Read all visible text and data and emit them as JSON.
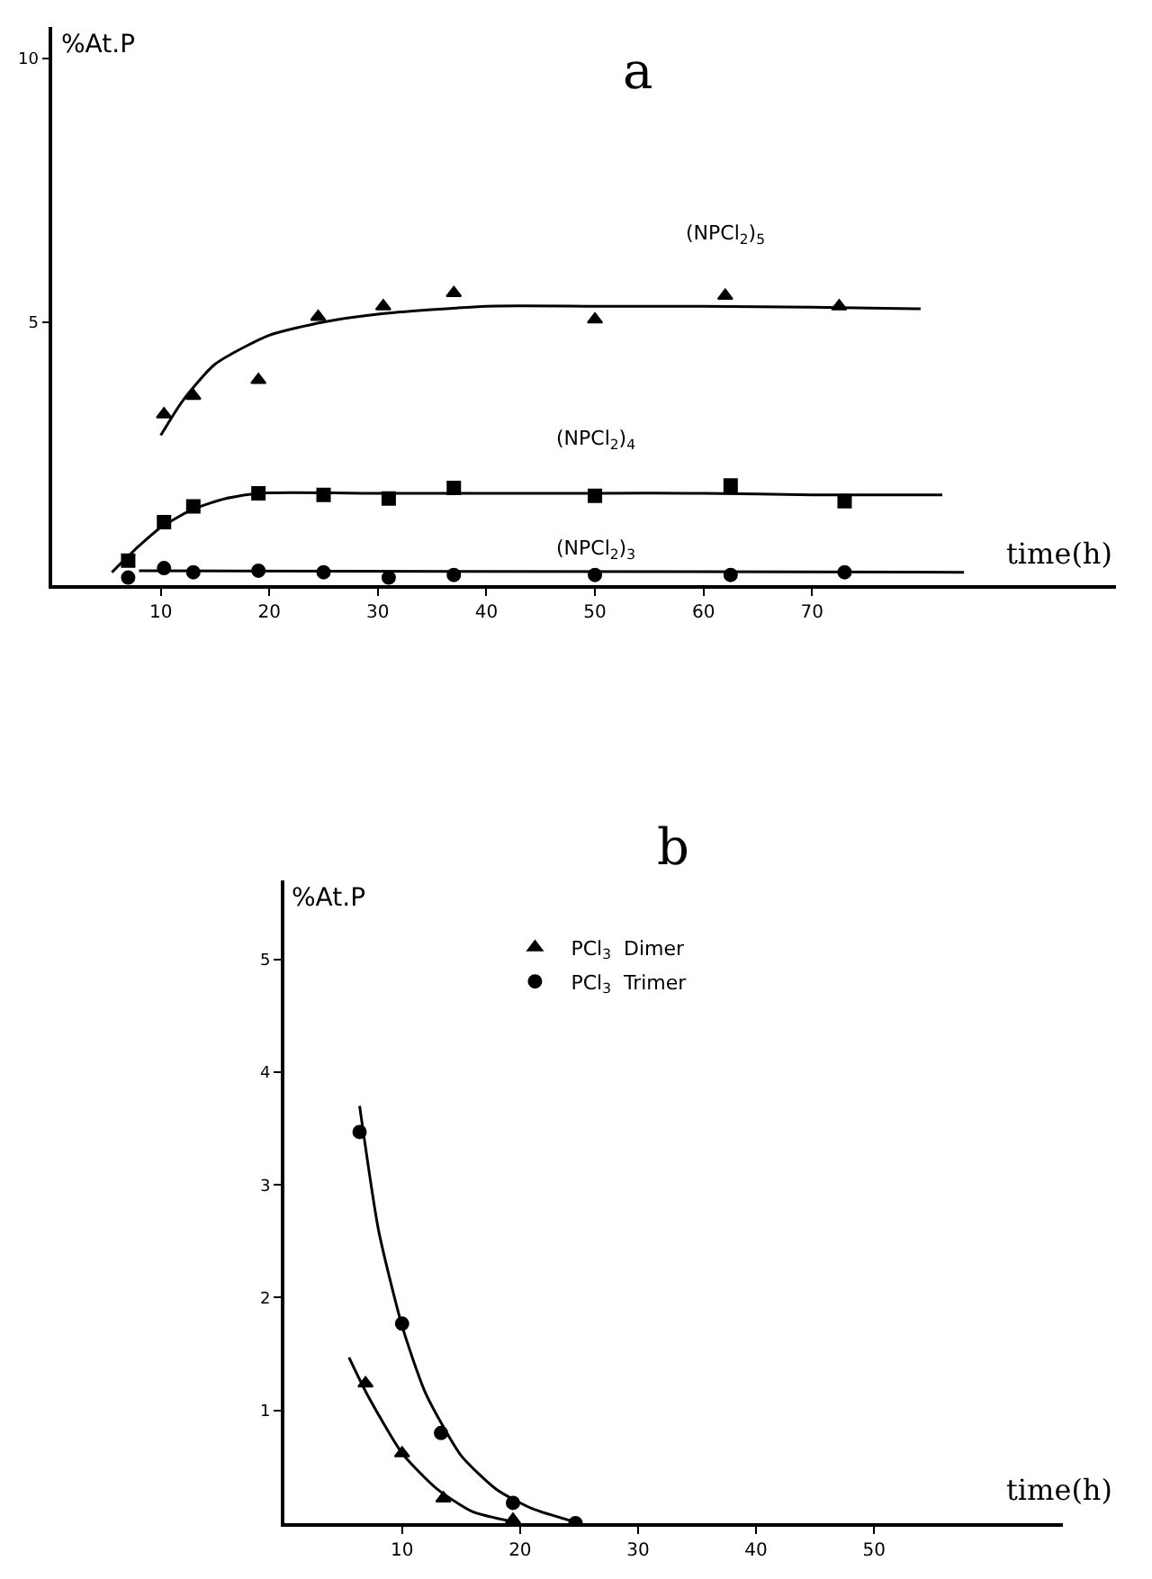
{
  "chart_data": [
    {
      "type": "scatter",
      "title": "a",
      "xlabel": "time(h)",
      "ylabel": "%At.P",
      "xlim": [
        0,
        98
      ],
      "ylim": [
        0,
        10.6
      ],
      "xticks": [
        10,
        20,
        30,
        40,
        50,
        60,
        70
      ],
      "yticks": [
        5,
        10
      ],
      "legend": false,
      "series": [
        {
          "name": "(NPCl$_{2}$)$_{5}$",
          "color": "#000000",
          "marker": "triangle",
          "x": [
            10.3,
            13,
            19,
            24.5,
            30.5,
            37,
            50,
            62,
            72.5
          ],
          "values": [
            3.25,
            3.6,
            3.9,
            5.1,
            5.3,
            5.55,
            5.05,
            5.5,
            5.3
          ]
        },
        {
          "name": "(NPCl$_{2}$)$_{4}$",
          "color": "#000000",
          "marker": "square",
          "x": [
            7,
            10.3,
            13,
            19,
            25,
            31,
            37,
            50,
            62.5,
            73
          ],
          "values": [
            0.47,
            1.2,
            1.5,
            1.75,
            1.72,
            1.65,
            1.85,
            1.7,
            1.9,
            1.6
          ]
        },
        {
          "name": "(NPCl$_{2}$)$_{3}$",
          "color": "#000000",
          "marker": "circle",
          "x": [
            7,
            10.3,
            13,
            19,
            25,
            31,
            37,
            50,
            62.5,
            73
          ],
          "values": [
            0.15,
            0.33,
            0.25,
            0.28,
            0.25,
            0.15,
            0.2,
            0.2,
            0.2,
            0.25
          ]
        },
        {
          "type": "line",
          "color": "#000000",
          "marker": "none",
          "x": [
            10,
            12,
            15,
            20,
            25,
            30,
            40,
            50,
            60,
            70,
            80
          ],
          "values": [
            2.85,
            3.5,
            4.2,
            4.75,
            5.0,
            5.15,
            5.3,
            5.3,
            5.3,
            5.28,
            5.25
          ]
        },
        {
          "type": "line",
          "color": "#000000",
          "marker": "none",
          "x": [
            5.5,
            8,
            10,
            13,
            16,
            19,
            30,
            40,
            50,
            60,
            70,
            82
          ],
          "values": [
            0.25,
            0.75,
            1.1,
            1.45,
            1.65,
            1.75,
            1.75,
            1.75,
            1.75,
            1.75,
            1.72,
            1.72
          ]
        },
        {
          "type": "line",
          "color": "#000000",
          "marker": "none",
          "x": [
            8,
            84
          ],
          "values": [
            0.28,
            0.25
          ]
        }
      ]
    },
    {
      "type": "scatter",
      "title": "b",
      "xlabel": "time(h)",
      "ylabel": "%At.P",
      "xlim": [
        0,
        66
      ],
      "ylim": [
        0,
        5.7
      ],
      "xticks": [
        10,
        20,
        30,
        40,
        50
      ],
      "yticks": [
        1,
        2,
        3,
        4,
        5
      ],
      "legend": "top",
      "series": [
        {
          "name": "PCl$_{3}$  Dimer",
          "color": "#000000",
          "marker": "triangle",
          "x": [
            6.9,
            10,
            13.5,
            19.4
          ],
          "values": [
            1.24,
            0.62,
            0.22,
            0.03
          ]
        },
        {
          "name": "PCl$_{3}$  Trimer",
          "color": "#000000",
          "marker": "circle",
          "x": [
            6.4,
            10,
            13.3,
            19.4,
            24.7
          ],
          "values": [
            3.47,
            1.77,
            0.8,
            0.18,
            0
          ]
        },
        {
          "type": "line",
          "color": "#000000",
          "marker": "none",
          "x": [
            5.5,
            7,
            10,
            13,
            16,
            20
          ],
          "values": [
            1.47,
            1.15,
            0.62,
            0.3,
            0.1,
            0
          ]
        },
        {
          "type": "line",
          "color": "#000000",
          "marker": "none",
          "x": [
            6.4,
            8,
            10,
            12,
            15,
            18,
            21,
            25
          ],
          "values": [
            3.7,
            2.6,
            1.75,
            1.15,
            0.6,
            0.3,
            0.13,
            0
          ]
        }
      ]
    }
  ]
}
